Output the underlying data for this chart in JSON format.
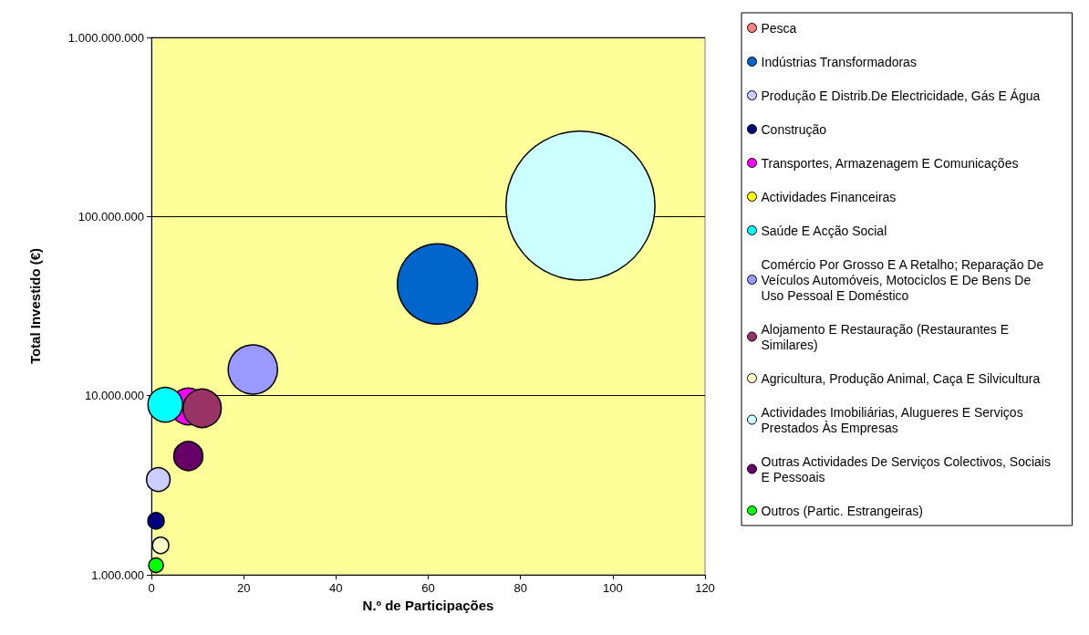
{
  "chart_data": {
    "type": "bubble",
    "xlabel": "N.º de Participações",
    "ylabel": "Total Investido (€)",
    "xlim": [
      0,
      120
    ],
    "xticks": [
      0,
      20,
      40,
      60,
      80,
      100,
      120
    ],
    "ylim": [
      1000000,
      1000000000
    ],
    "yticks": [
      {
        "value": 1000000,
        "label": "1.000.000"
      },
      {
        "value": 10000000,
        "label": "10.000.000"
      },
      {
        "value": 100000000,
        "label": "100.000.000"
      },
      {
        "value": 1000000000,
        "label": "1.000.000.000"
      }
    ],
    "log": "y",
    "grid": "y",
    "legend": "right",
    "marker": "circle",
    "series": [
      {
        "name": "Pesca",
        "color": "#ff8080",
        "x": [
          null
        ],
        "values": [
          null
        ],
        "sizes": [
          null
        ]
      },
      {
        "name": "Indústrias Transformadoras",
        "color": "#0066cc",
        "x": [
          62
        ],
        "values": [
          42000000
        ],
        "sizes": [
          0.29
        ]
      },
      {
        "name": "Produção E Distrib.De Electricidade, Gás E Água",
        "color": "#ccccff",
        "x": [
          1.5
        ],
        "values": [
          3400000
        ],
        "sizes": [
          0.025
        ]
      },
      {
        "name": "Construção",
        "color": "#000080",
        "x": [
          1
        ],
        "values": [
          2000000
        ],
        "sizes": [
          0.012
        ]
      },
      {
        "name": "Transportes, Armazenagem E Comunicações",
        "color": "#ff00ff",
        "x": [
          8
        ],
        "values": [
          8700000
        ],
        "sizes": [
          0.06
        ]
      },
      {
        "name": "Actividades Financeiras",
        "color": "#ffff00",
        "x": [
          null
        ],
        "values": [
          null
        ],
        "sizes": [
          null
        ]
      },
      {
        "name": "Saúde E Acção Social",
        "color": "#00ffff",
        "x": [
          3
        ],
        "values": [
          8900000
        ],
        "sizes": [
          0.054
        ]
      },
      {
        "name": "Comércio Por Grosso E A Retalho; Reparação De Veículos Automóveis, Motociclos E De Bens De Uso Pessoal E Doméstico",
        "color": "#9999ff",
        "x": [
          22
        ],
        "values": [
          14000000
        ],
        "sizes": [
          0.11
        ]
      },
      {
        "name": "Alojamento E Restauração (Restaurantes E Similares)",
        "color": "#993366",
        "x": [
          11
        ],
        "values": [
          8500000
        ],
        "sizes": [
          0.066
        ]
      },
      {
        "name": "Agricultura, Produção Animal, Caça E Silvicultura",
        "color": "#ffffcc",
        "x": [
          2
        ],
        "values": [
          1460000
        ],
        "sizes": [
          0.012
        ]
      },
      {
        "name": "Actividades Imobiliárias, Alugueres E Serviços Prestados Às Empresas",
        "color": "#ccffff",
        "x": [
          93
        ],
        "values": [
          115000000
        ],
        "sizes": [
          1
        ]
      },
      {
        "name": "Outras Actividades De Serviços Colectivos, Sociais E Pessoais",
        "color": "#660066",
        "x": [
          8
        ],
        "values": [
          4600000
        ],
        "sizes": [
          0.038
        ]
      },
      {
        "name": "Outros (Partic. Estrangeiras)",
        "color": "#00ff00",
        "x": [
          1
        ],
        "values": [
          1130000
        ],
        "sizes": [
          0.0095
        ]
      }
    ]
  }
}
